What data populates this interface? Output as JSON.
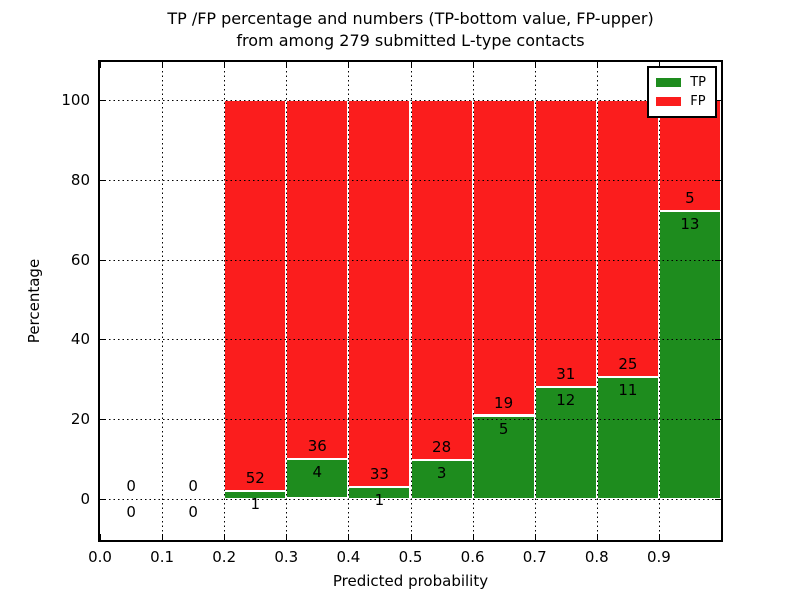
{
  "title": {
    "line1": "TP /FP percentage and numbers (TP-bottom value, FP-upper)",
    "line2": "from among 279 submitted L-type contacts"
  },
  "chart_data": {
    "type": "bar",
    "variant": "stacked-percentage",
    "title": "TP /FP percentage and numbers (TP-bottom value, FP-upper)\nfrom among 279 submitted L-type contacts",
    "xlabel": "Predicted probability",
    "ylabel": "Percentage",
    "total_contacts": 279,
    "xlim": [
      0.0,
      1.0
    ],
    "ylim": [
      -10.4,
      109.6
    ],
    "xticks": [
      0.0,
      0.1,
      0.2,
      0.3,
      0.4,
      0.5,
      0.6,
      0.7,
      0.8,
      0.9
    ],
    "xtick_labels": [
      "0.0",
      "0.1",
      "0.2",
      "0.3",
      "0.4",
      "0.5",
      "0.6",
      "0.7",
      "0.8",
      "0.9"
    ],
    "yticks": [
      0,
      20,
      40,
      60,
      80,
      100
    ],
    "ytick_labels": [
      "0",
      "20",
      "40",
      "60",
      "80",
      "100"
    ],
    "grid": {
      "style": "dotted",
      "axes": "both",
      "color": "#000000",
      "drawn_over_bars": true
    },
    "bar_edge_color": "#ffffff",
    "annotation_note": "FP count printed just above TP/FP boundary, TP count just below",
    "bins": [
      {
        "range": [
          0.0,
          0.1
        ],
        "tp": 0,
        "fp": 0
      },
      {
        "range": [
          0.1,
          0.2
        ],
        "tp": 0,
        "fp": 0
      },
      {
        "range": [
          0.2,
          0.3
        ],
        "tp": 1,
        "fp": 52
      },
      {
        "range": [
          0.3,
          0.4
        ],
        "tp": 4,
        "fp": 36
      },
      {
        "range": [
          0.4,
          0.5
        ],
        "tp": 1,
        "fp": 33
      },
      {
        "range": [
          0.5,
          0.6
        ],
        "tp": 3,
        "fp": 28
      },
      {
        "range": [
          0.6,
          0.7
        ],
        "tp": 5,
        "fp": 19
      },
      {
        "range": [
          0.7,
          0.8
        ],
        "tp": 12,
        "fp": 31
      },
      {
        "range": [
          0.8,
          0.9
        ],
        "tp": 11,
        "fp": 25
      },
      {
        "range": [
          0.9,
          1.0
        ],
        "tp": 13,
        "fp": 5
      }
    ],
    "legend": {
      "position": "upper right",
      "entries": [
        {
          "label": "TP",
          "color": "#1e8c1e"
        },
        {
          "label": "FP",
          "color": "#fb1d1d"
        }
      ]
    }
  },
  "colors": {
    "tp_green": "#1e8c1e",
    "fp_red": "#fb1d1d",
    "background": "#ffffff",
    "text": "#000000",
    "grid": "#000000"
  }
}
